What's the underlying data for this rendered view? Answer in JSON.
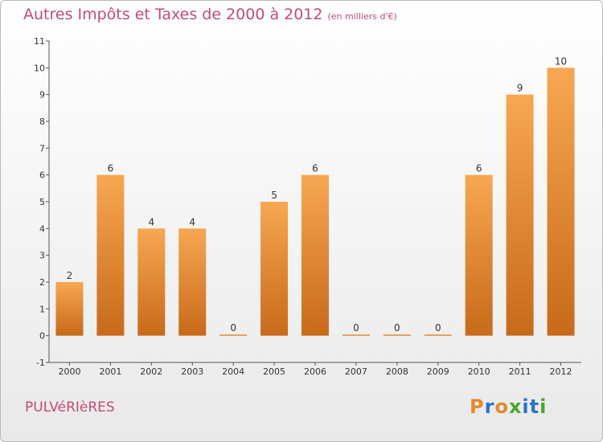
{
  "header": {
    "title": "Autres Impôts et Taxes de 2000 à 2012",
    "unit": "(en milliers d'€)"
  },
  "footer": {
    "commune": "PULVéRIèRES",
    "logo_letters": [
      "P",
      "r",
      "o",
      "x",
      "i",
      "t",
      "i"
    ]
  },
  "colors": {
    "accent": "#c24c70",
    "bar_top": "#f7a752",
    "bar_bottom": "#c76a1a"
  },
  "logo_colors": [
    "#e5892c",
    "#2a73c6",
    "#e5892c",
    "#4aa62e",
    "#2a73c6",
    "#2a73c6",
    "#4aa62e"
  ],
  "chart_data": {
    "type": "bar",
    "categories": [
      "2000",
      "2001",
      "2002",
      "2003",
      "2004",
      "2005",
      "2006",
      "2007",
      "2008",
      "2009",
      "2010",
      "2011",
      "2012"
    ],
    "values": [
      2,
      6,
      4,
      4,
      0,
      5,
      6,
      0,
      0,
      0,
      6,
      9,
      10
    ],
    "data_labels": [
      "2",
      "6",
      "4",
      "4",
      "0",
      "5",
      "6",
      "0",
      "0",
      "0",
      "6",
      "9",
      "10"
    ],
    "y_ticks": [
      "-1",
      "0",
      "1",
      "2",
      "3",
      "4",
      "5",
      "6",
      "7",
      "8",
      "9",
      "10",
      "11"
    ],
    "ylim": [
      -1,
      11
    ],
    "grid": false
  }
}
